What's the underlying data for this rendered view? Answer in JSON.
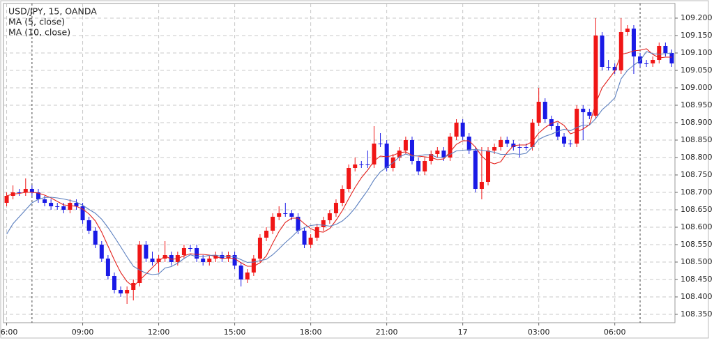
{
  "chart_data": {
    "type": "candlestick",
    "categories": [
      "06:00",
      null,
      null,
      null,
      null,
      null,
      null,
      null,
      null,
      null,
      null,
      null,
      "09:00",
      null,
      null,
      null,
      null,
      null,
      null,
      null,
      null,
      null,
      null,
      null,
      "12:00",
      null,
      null,
      null,
      null,
      null,
      null,
      null,
      null,
      null,
      null,
      null,
      "15:00",
      null,
      null,
      null,
      null,
      null,
      null,
      null,
      null,
      null,
      null,
      null,
      "18:00",
      null,
      null,
      null,
      null,
      null,
      null,
      null,
      null,
      null,
      null,
      null,
      "21:00",
      null,
      null,
      null,
      null,
      null,
      null,
      null,
      null,
      null,
      null,
      null,
      "17",
      null,
      null,
      null,
      null,
      null,
      null,
      null,
      null,
      null,
      null,
      null,
      "03:00",
      null,
      null,
      null,
      null,
      null,
      null,
      null,
      null,
      null,
      null,
      null,
      "06:00",
      null,
      null,
      null,
      null,
      null,
      null,
      null,
      null,
      null
    ],
    "session_lines": [
      4,
      100
    ],
    "ylim": [
      108.326,
      109.242
    ],
    "yticks": [
      {
        "value": 109.2,
        "label": "109.200"
      },
      {
        "value": 109.15,
        "label": "109.150"
      },
      {
        "value": 109.1,
        "label": "109.100"
      },
      {
        "value": 109.05,
        "label": "109.050"
      },
      {
        "value": 109.0,
        "label": "109.000"
      },
      {
        "value": 108.95,
        "label": "108.950"
      },
      {
        "value": 108.9,
        "label": "108.900"
      },
      {
        "value": 108.85,
        "label": "108.850"
      },
      {
        "value": 108.8,
        "label": "108.800"
      },
      {
        "value": 108.75,
        "label": "108.750"
      },
      {
        "value": 108.7,
        "label": "108.700"
      },
      {
        "value": 108.65,
        "label": "108.650"
      },
      {
        "value": 108.6,
        "label": "108.600"
      },
      {
        "value": 108.55,
        "label": "108.550"
      },
      {
        "value": 108.5,
        "label": "108.500"
      },
      {
        "value": 108.45,
        "label": "108.450"
      },
      {
        "value": 108.4,
        "label": "108.400"
      },
      {
        "value": 108.35,
        "label": "108.350"
      }
    ],
    "grid": true,
    "series": [
      {
        "name": "USD/JPY, 15, OANDA",
        "up_color": "#f01616",
        "down_color": "#1a1ae6",
        "open": [
          108.67,
          108.69,
          108.7,
          108.7,
          108.71,
          108.7,
          108.68,
          108.67,
          108.66,
          108.66,
          108.65,
          108.67,
          108.66,
          108.62,
          108.59,
          108.55,
          108.51,
          108.46,
          108.42,
          108.41,
          108.42,
          108.44,
          108.55,
          108.51,
          108.5,
          108.51,
          108.52,
          108.5,
          108.52,
          108.54,
          108.54,
          108.51,
          108.5,
          108.51,
          108.52,
          108.51,
          108.52,
          108.49,
          108.45,
          108.47,
          108.51,
          108.57,
          108.59,
          108.63,
          108.64,
          108.64,
          108.63,
          108.59,
          108.55,
          108.57,
          108.6,
          108.62,
          108.64,
          108.67,
          108.71,
          108.77,
          108.78,
          108.78,
          108.78,
          108.84,
          108.84,
          108.77,
          108.8,
          108.82,
          108.85,
          108.79,
          108.76,
          108.79,
          108.81,
          108.82,
          108.8,
          108.86,
          108.9,
          108.86,
          108.82,
          108.71,
          108.73,
          108.82,
          108.83,
          108.85,
          108.84,
          108.83,
          108.83,
          108.83,
          108.9,
          108.96,
          108.91,
          108.89,
          108.86,
          108.84,
          108.84,
          108.94,
          108.93,
          108.92,
          109.15,
          109.06,
          109.06,
          109.05,
          109.16,
          109.17,
          109.09,
          109.07,
          109.07,
          109.08,
          109.12,
          109.1
        ],
        "high": [
          108.7,
          108.72,
          108.71,
          108.74,
          108.72,
          108.71,
          108.69,
          108.68,
          108.67,
          108.67,
          108.68,
          108.68,
          108.67,
          108.63,
          108.6,
          108.56,
          108.52,
          108.47,
          108.43,
          108.43,
          108.45,
          108.56,
          108.56,
          108.53,
          108.52,
          108.56,
          108.53,
          108.53,
          108.55,
          108.55,
          108.55,
          108.52,
          108.52,
          108.53,
          108.53,
          108.53,
          108.53,
          108.5,
          108.48,
          108.52,
          108.58,
          108.6,
          108.64,
          108.66,
          108.67,
          108.65,
          108.64,
          108.6,
          108.58,
          108.61,
          108.63,
          108.65,
          108.68,
          108.72,
          108.78,
          108.8,
          108.79,
          108.82,
          108.89,
          108.87,
          108.85,
          108.81,
          108.83,
          108.86,
          108.86,
          108.8,
          108.8,
          108.82,
          108.83,
          108.83,
          108.87,
          108.91,
          108.91,
          108.87,
          108.83,
          108.83,
          108.83,
          108.84,
          108.86,
          108.86,
          108.85,
          108.84,
          108.84,
          108.91,
          109.0,
          108.97,
          108.92,
          108.9,
          108.87,
          108.85,
          108.95,
          108.95,
          108.94,
          109.2,
          109.16,
          109.08,
          109.07,
          109.2,
          109.18,
          109.18,
          109.1,
          109.08,
          109.09,
          109.13,
          109.13,
          109.11
        ],
        "low": [
          108.66,
          108.68,
          108.69,
          108.69,
          108.69,
          108.67,
          108.66,
          108.65,
          108.65,
          108.64,
          108.64,
          108.65,
          108.61,
          108.58,
          108.54,
          108.5,
          108.45,
          108.41,
          108.4,
          108.38,
          108.39,
          108.43,
          108.5,
          108.49,
          108.47,
          108.5,
          108.49,
          108.49,
          108.51,
          108.53,
          108.5,
          108.49,
          108.49,
          108.5,
          108.5,
          108.5,
          108.48,
          108.43,
          108.44,
          108.46,
          108.5,
          108.56,
          108.58,
          108.62,
          108.63,
          108.62,
          108.58,
          108.54,
          108.54,
          108.56,
          108.59,
          108.61,
          108.63,
          108.66,
          108.7,
          108.76,
          108.77,
          108.77,
          108.77,
          108.83,
          108.76,
          108.76,
          108.79,
          108.81,
          108.78,
          108.75,
          108.75,
          108.78,
          108.8,
          108.79,
          108.79,
          108.85,
          108.85,
          108.81,
          108.7,
          108.68,
          108.72,
          108.81,
          108.82,
          108.83,
          108.82,
          108.8,
          108.82,
          108.82,
          108.89,
          108.9,
          108.88,
          108.85,
          108.83,
          108.83,
          108.83,
          108.85,
          108.91,
          108.91,
          109.05,
          109.05,
          109.04,
          109.04,
          109.15,
          109.04,
          109.06,
          109.06,
          109.06,
          109.07,
          109.09,
          109.06
        ],
        "close": [
          108.69,
          108.7,
          108.7,
          108.71,
          108.7,
          108.68,
          108.67,
          108.66,
          108.66,
          108.65,
          108.67,
          108.66,
          108.62,
          108.59,
          108.55,
          108.51,
          108.46,
          108.42,
          108.41,
          108.42,
          108.44,
          108.55,
          108.51,
          108.5,
          108.51,
          108.52,
          108.5,
          108.52,
          108.54,
          108.54,
          108.51,
          108.5,
          108.51,
          108.52,
          108.51,
          108.52,
          108.49,
          108.45,
          108.47,
          108.51,
          108.57,
          108.59,
          108.63,
          108.64,
          108.64,
          108.63,
          108.59,
          108.55,
          108.57,
          108.6,
          108.62,
          108.64,
          108.67,
          108.71,
          108.77,
          108.78,
          108.78,
          108.78,
          108.84,
          108.84,
          108.77,
          108.8,
          108.82,
          108.85,
          108.79,
          108.76,
          108.79,
          108.81,
          108.82,
          108.8,
          108.86,
          108.9,
          108.86,
          108.82,
          108.71,
          108.73,
          108.82,
          108.83,
          108.85,
          108.84,
          108.83,
          108.83,
          108.83,
          108.9,
          108.96,
          108.91,
          108.89,
          108.86,
          108.84,
          108.84,
          108.94,
          108.93,
          108.92,
          109.15,
          109.06,
          109.06,
          109.05,
          109.16,
          109.17,
          109.09,
          109.07,
          109.07,
          109.08,
          109.12,
          109.1,
          109.07
        ]
      },
      {
        "name": "MA (5, close)",
        "color": "#e3211c",
        "values": [
          108.69,
          108.695,
          108.697,
          108.7,
          108.7,
          108.698,
          108.692,
          108.684,
          108.674,
          108.664,
          108.662,
          108.66,
          108.652,
          108.638,
          108.618,
          108.586,
          108.546,
          108.506,
          108.47,
          108.444,
          108.43,
          108.448,
          108.466,
          108.484,
          108.502,
          108.518,
          108.508,
          108.51,
          108.518,
          108.524,
          108.522,
          108.522,
          108.52,
          108.516,
          108.51,
          108.512,
          108.51,
          108.498,
          108.488,
          108.488,
          108.498,
          108.518,
          108.554,
          108.588,
          108.614,
          108.626,
          108.626,
          108.61,
          108.596,
          108.588,
          108.586,
          108.596,
          108.62,
          108.648,
          108.682,
          108.714,
          108.742,
          108.764,
          108.79,
          108.804,
          108.802,
          108.806,
          108.814,
          108.816,
          108.806,
          108.804,
          108.802,
          108.8,
          108.794,
          108.796,
          108.816,
          108.838,
          108.848,
          108.848,
          108.83,
          108.804,
          108.788,
          108.782,
          108.788,
          108.814,
          108.834,
          108.836,
          108.836,
          108.846,
          108.87,
          108.886,
          108.898,
          108.904,
          108.892,
          108.868,
          108.874,
          108.882,
          108.894,
          108.956,
          109.0,
          109.024,
          109.048,
          109.096,
          109.1,
          109.106,
          109.108,
          109.112,
          109.096,
          109.086,
          109.088,
          109.088
        ]
      },
      {
        "name": "MA (10, close)",
        "color": "#5b7fbf",
        "values": [
          108.58,
          108.61,
          108.63,
          108.65,
          108.67,
          108.68,
          108.685,
          108.686,
          108.684,
          108.681,
          108.677,
          108.672,
          108.663,
          108.651,
          108.64,
          108.623,
          108.599,
          108.572,
          108.544,
          108.515,
          108.488,
          108.477,
          108.468,
          108.464,
          108.466,
          108.483,
          108.487,
          108.497,
          108.51,
          108.521,
          108.515,
          108.516,
          108.519,
          108.52,
          108.516,
          108.517,
          108.515,
          108.507,
          108.499,
          108.5,
          108.504,
          108.508,
          108.521,
          108.538,
          108.556,
          108.572,
          108.59,
          108.599,
          108.605,
          108.607,
          108.606,
          108.603,
          108.608,
          108.618,
          108.634,
          108.655,
          108.681,
          108.706,
          108.736,
          108.759,
          108.772,
          108.785,
          108.802,
          108.81,
          108.804,
          108.805,
          108.808,
          108.808,
          108.8,
          108.8,
          108.809,
          108.819,
          108.821,
          108.822,
          108.823,
          108.821,
          108.818,
          108.815,
          108.809,
          108.809,
          108.811,
          108.809,
          108.812,
          108.83,
          108.852,
          108.861,
          108.867,
          108.875,
          108.881,
          108.877,
          108.886,
          108.893,
          108.893,
          108.912,
          108.937,
          108.953,
          108.971,
          109.026,
          109.05,
          109.065,
          109.078,
          109.104,
          109.098,
          109.096,
          109.098,
          109.1
        ]
      }
    ]
  }
}
